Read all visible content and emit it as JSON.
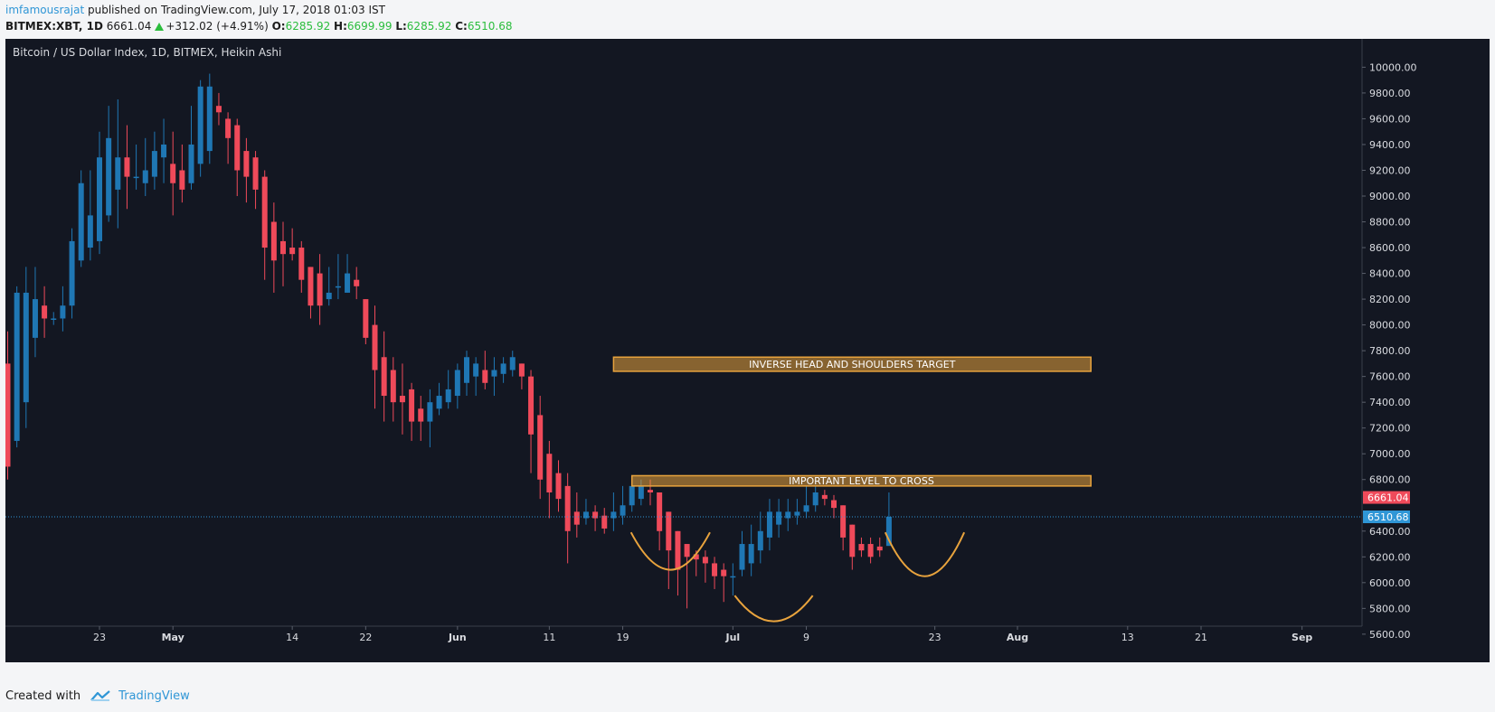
{
  "header": {
    "author": "imfamousrajat",
    "published_text": "published on TradingView.com, July 17, 2018 01:03 IST",
    "symbol_timeframe": "BITMEX:XBT, 1D",
    "last_price": "6661.04",
    "change_text": "+312.02 (+4.91%)",
    "o_label": "O:",
    "o_value": "6285.92",
    "h_label": "H:",
    "h_value": "6699.99",
    "l_label": "L:",
    "l_value": "6285.92",
    "c_label": "C:",
    "c_value": "6510.68"
  },
  "footer": {
    "created_with": "Created with",
    "brand": "TradingView"
  },
  "colors": {
    "background": "#131722",
    "up": "#1f77b4",
    "down": "#ef4a5a",
    "annotation": "#e8a33d",
    "current_price_line": "#2f96d6"
  },
  "chart_data": {
    "type": "candlestick",
    "title": "Bitcoin / US Dollar Index, 1D, BITMEX, Heikin Ashi",
    "ylim": [
      5550,
      10150
    ],
    "y_ticks": [
      "10000.00",
      "9800.00",
      "9600.00",
      "9400.00",
      "9200.00",
      "9000.00",
      "8800.00",
      "8600.00",
      "8400.00",
      "8200.00",
      "8000.00",
      "7800.00",
      "7600.00",
      "7400.00",
      "7200.00",
      "7000.00",
      "6800.00",
      "6400.00",
      "6200.00",
      "6000.00",
      "5800.00",
      "5600.00"
    ],
    "x_ticks": [
      {
        "label": "23",
        "day": 0
      },
      {
        "label": "May",
        "day": 8
      },
      {
        "label": "14",
        "day": 21
      },
      {
        "label": "22",
        "day": 29
      },
      {
        "label": "Jun",
        "day": 39
      },
      {
        "label": "11",
        "day": 49
      },
      {
        "label": "19",
        "day": 57
      },
      {
        "label": "Jul",
        "day": 69
      },
      {
        "label": "9",
        "day": 77
      },
      {
        "label": "23",
        "day": 91
      },
      {
        "label": "Aug",
        "day": 100
      },
      {
        "label": "13",
        "day": 112
      },
      {
        "label": "21",
        "day": 120
      },
      {
        "label": "Sep",
        "day": 131
      }
    ],
    "candles": [
      [
        7700,
        6900,
        7950,
        6800
      ],
      [
        7100,
        8250,
        8300,
        7050
      ],
      [
        7400,
        8250,
        8450,
        7200
      ],
      [
        7900,
        8200,
        8450,
        7750
      ],
      [
        8150,
        8050,
        8300,
        7900
      ],
      [
        8050,
        8050,
        8100,
        8000
      ],
      [
        8050,
        8150,
        8300,
        7950
      ],
      [
        8150,
        8650,
        8750,
        8050
      ],
      [
        8500,
        9100,
        9200,
        8450
      ],
      [
        8600,
        8850,
        9200,
        8500
      ],
      [
        8650,
        9300,
        9500,
        8550
      ],
      [
        8850,
        9450,
        9700,
        8800
      ],
      [
        9050,
        9300,
        9750,
        8750
      ],
      [
        9300,
        9150,
        9550,
        8900
      ],
      [
        9150,
        9150,
        9400,
        9050
      ],
      [
        9100,
        9200,
        9450,
        9000
      ],
      [
        9150,
        9350,
        9500,
        9050
      ],
      [
        9300,
        9400,
        9600,
        9100
      ],
      [
        9250,
        9100,
        9500,
        8850
      ],
      [
        9200,
        9050,
        9400,
        8950
      ],
      [
        9100,
        9400,
        9700,
        9050
      ],
      [
        9250,
        9850,
        9900,
        9150
      ],
      [
        9350,
        9850,
        9950,
        9250
      ],
      [
        9700,
        9650,
        9800,
        9550
      ],
      [
        9600,
        9450,
        9650,
        9250
      ],
      [
        9550,
        9200,
        9600,
        9000
      ],
      [
        9350,
        9150,
        9450,
        8950
      ],
      [
        9300,
        9050,
        9350,
        8900
      ],
      [
        9150,
        8600,
        9200,
        8350
      ],
      [
        8800,
        8500,
        8950,
        8250
      ],
      [
        8650,
        8550,
        8800,
        8300
      ],
      [
        8600,
        8550,
        8750,
        8500
      ],
      [
        8600,
        8350,
        8650,
        8250
      ],
      [
        8450,
        8150,
        8450,
        8050
      ],
      [
        8400,
        8150,
        8550,
        8000
      ],
      [
        8200,
        8250,
        8450,
        8150
      ],
      [
        8300,
        8300,
        8550,
        8200
      ],
      [
        8250,
        8400,
        8550,
        8250
      ],
      [
        8350,
        8300,
        8450,
        8200
      ],
      [
        8200,
        7900,
        8200,
        7850
      ],
      [
        8000,
        7650,
        8150,
        7350
      ],
      [
        7750,
        7450,
        7950,
        7250
      ],
      [
        7650,
        7400,
        7750,
        7250
      ],
      [
        7450,
        7400,
        7700,
        7150
      ],
      [
        7500,
        7250,
        7550,
        7100
      ],
      [
        7350,
        7250,
        7450,
        7100
      ],
      [
        7250,
        7400,
        7500,
        7050
      ],
      [
        7350,
        7450,
        7550,
        7300
      ],
      [
        7400,
        7500,
        7650,
        7350
      ],
      [
        7450,
        7650,
        7700,
        7350
      ],
      [
        7550,
        7750,
        7800,
        7450
      ],
      [
        7600,
        7700,
        7750,
        7450
      ],
      [
        7650,
        7550,
        7800,
        7500
      ],
      [
        7600,
        7650,
        7750,
        7450
      ],
      [
        7620,
        7700,
        7750,
        7550
      ],
      [
        7650,
        7750,
        7800,
        7600
      ],
      [
        7700,
        7600,
        7700,
        7500
      ],
      [
        7600,
        7150,
        7650,
        6850
      ],
      [
        7300,
        6800,
        7450,
        6650
      ],
      [
        7000,
        6700,
        7100,
        6500
      ],
      [
        6850,
        6650,
        6950,
        6550
      ],
      [
        6750,
        6400,
        6850,
        6150
      ],
      [
        6550,
        6450,
        6700,
        6350
      ],
      [
        6500,
        6550,
        6650,
        6450
      ],
      [
        6550,
        6500,
        6600,
        6400
      ],
      [
        6520,
        6420,
        6580,
        6380
      ],
      [
        6500,
        6550,
        6700,
        6400
      ],
      [
        6520,
        6600,
        6750,
        6450
      ],
      [
        6600,
        6750,
        6800,
        6550
      ],
      [
        6650,
        6750,
        6800,
        6600
      ],
      [
        6720,
        6700,
        6800,
        6600
      ],
      [
        6700,
        6400,
        6700,
        6250
      ],
      [
        6550,
        6250,
        6550,
        5950
      ],
      [
        6400,
        6100,
        6400,
        5900
      ],
      [
        6300,
        6200,
        6300,
        5800
      ],
      [
        6220,
        6180,
        6250,
        6050
      ],
      [
        6200,
        6150,
        6250,
        6000
      ],
      [
        6150,
        6050,
        6200,
        5950
      ],
      [
        6100,
        6050,
        6150,
        5850
      ],
      [
        6050,
        6050,
        6150,
        5900
      ],
      [
        6100,
        6300,
        6400,
        6050
      ],
      [
        6150,
        6300,
        6450,
        6050
      ],
      [
        6250,
        6400,
        6550,
        6150
      ],
      [
        6350,
        6550,
        6650,
        6250
      ],
      [
        6450,
        6550,
        6650,
        6350
      ],
      [
        6500,
        6550,
        6650,
        6400
      ],
      [
        6520,
        6550,
        6650,
        6450
      ],
      [
        6550,
        6600,
        6750,
        6500
      ],
      [
        6600,
        6700,
        6750,
        6550
      ],
      [
        6680,
        6650,
        6720,
        6600
      ],
      [
        6640,
        6580,
        6680,
        6500
      ],
      [
        6600,
        6350,
        6600,
        6250
      ],
      [
        6450,
        6200,
        6450,
        6100
      ],
      [
        6300,
        6250,
        6350,
        6200
      ],
      [
        6300,
        6200,
        6350,
        6150
      ],
      [
        6280,
        6250,
        6350,
        6200
      ],
      [
        6285,
        6511,
        6700,
        6286
      ]
    ],
    "annotations": [
      {
        "type": "box",
        "label": "INVERSE HEAD AND SHOULDERS TARGET",
        "from_day": 56,
        "to_day": 108,
        "price_low": 7640,
        "price_high": 7750
      },
      {
        "type": "box",
        "label": "IMPORTANT LEVEL TO CROSS",
        "from_day": 58,
        "to_day": 108,
        "price_low": 6750,
        "price_high": 6830
      },
      {
        "type": "arc",
        "from_day": 57.9,
        "to_day": 66.5,
        "price_top": 6390,
        "price_bottom": 6100
      },
      {
        "type": "arc",
        "from_day": 69.2,
        "to_day": 77.7,
        "price_top": 5900,
        "price_bottom": 5700
      },
      {
        "type": "arc",
        "from_day": 85.6,
        "to_day": 94.2,
        "price_top": 6390,
        "price_bottom": 6050
      }
    ],
    "price_badges": [
      {
        "label": "6661.04",
        "price": 6661.04,
        "color": "#ef4a5a"
      },
      {
        "label": "6510.68",
        "price": 6510.68,
        "color": "#2f96d6"
      }
    ],
    "current_price": 6510.68,
    "grid": false,
    "legend": "none"
  }
}
